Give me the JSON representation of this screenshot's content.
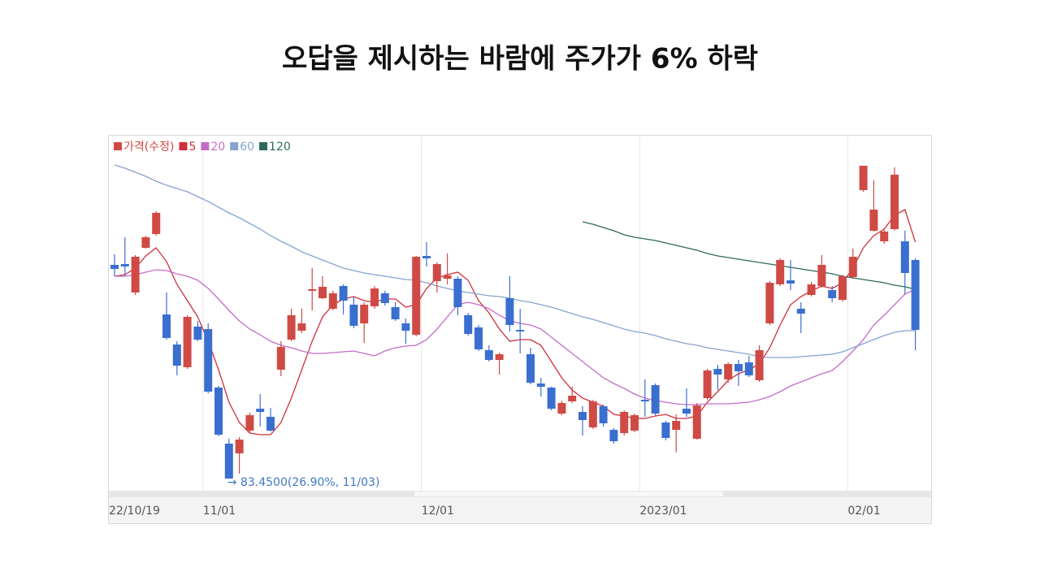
{
  "chart_data": {
    "type": "candlestick",
    "title": "오답을 제시하는 바람에 주가가 6% 하락",
    "price_name": "가격(수정)",
    "up_color": "#d04a45",
    "down_color": "#3a6fd0",
    "legend": "top-left",
    "annotation": "→ 83.4500(26.90%, 11/03)",
    "categories": [
      "22/10/19",
      null,
      null,
      null,
      null,
      null,
      null,
      null,
      null,
      "11/01",
      null,
      null,
      null,
      null,
      null,
      null,
      null,
      null,
      null,
      null,
      null,
      null,
      null,
      null,
      null,
      null,
      null,
      null,
      null,
      null,
      "12/01",
      null,
      null,
      null,
      null,
      null,
      null,
      null,
      null,
      null,
      null,
      null,
      null,
      null,
      null,
      null,
      null,
      null,
      null,
      null,
      null,
      "2023/01",
      null,
      null,
      null,
      null,
      null,
      null,
      null,
      null,
      null,
      null,
      null,
      null,
      null,
      null,
      null,
      null,
      null,
      null,
      null,
      "02/01",
      null,
      null,
      null,
      null,
      null,
      null
    ],
    "open": [
      109.75,
      109.85,
      106.35,
      111.85,
      113.55,
      103.65,
      99.95,
      97.15,
      102.15,
      101.85,
      94.65,
      87.75,
      86.55,
      89.35,
      92.05,
      91.05,
      96.85,
      100.55,
      101.65,
      106.55,
      105.65,
      104.35,
      107.15,
      104.85,
      102.55,
      104.65,
      106.25,
      104.55,
      102.55,
      101.15,
      110.85,
      107.75,
      108.05,
      108.05,
      103.55,
      102.05,
      99.25,
      98.05,
      105.65,
      101.75,
      98.75,
      95.15,
      94.65,
      91.45,
      92.95,
      91.65,
      89.75,
      92.35,
      89.45,
      89.05,
      89.35,
      93.15,
      94.95,
      90.35,
      89.45,
      92.05,
      88.35,
      93.35,
      96.95,
      95.65,
      97.55,
      97.75,
      95.55,
      102.55,
      107.35,
      107.85,
      104.35,
      106.05,
      107.15,
      106.65,
      105.45,
      108.25,
      118.95,
      113.95,
      112.65,
      114.15,
      112.65,
      110.35
    ],
    "high": [
      111.05,
      113.15,
      110.95,
      113.35,
      116.35,
      106.35,
      100.35,
      103.55,
      102.85,
      102.55,
      94.85,
      88.35,
      88.55,
      91.55,
      93.85,
      92.15,
      100.35,
      104.35,
      104.35,
      109.35,
      108.35,
      106.55,
      107.35,
      105.85,
      105.15,
      107.15,
      106.55,
      105.15,
      103.15,
      110.85,
      112.55,
      110.05,
      111.15,
      108.35,
      103.85,
      102.35,
      99.85,
      98.95,
      108.35,
      104.35,
      99.55,
      95.85,
      94.75,
      93.05,
      94.75,
      92.35,
      93.15,
      92.55,
      89.65,
      91.85,
      91.45,
      95.65,
      95.15,
      90.55,
      91.35,
      94.55,
      92.75,
      96.95,
      97.45,
      97.75,
      98.05,
      98.55,
      99.85,
      107.75,
      110.55,
      110.35,
      105.15,
      107.65,
      110.95,
      107.15,
      108.55,
      111.75,
      121.95,
      120.15,
      114.15,
      121.75,
      113.95,
      110.55
    ],
    "low": [
      108.35,
      108.35,
      106.05,
      111.75,
      113.35,
      100.55,
      96.15,
      96.95,
      100.35,
      93.95,
      88.65,
      83.45,
      84.05,
      89.05,
      89.85,
      89.25,
      96.05,
      100.35,
      101.35,
      104.15,
      105.55,
      104.15,
      103.65,
      101.95,
      100.15,
      104.35,
      104.75,
      102.85,
      100.05,
      100.95,
      109.55,
      106.35,
      107.35,
      103.55,
      101.05,
      99.15,
      97.85,
      96.25,
      101.55,
      98.85,
      95.05,
      93.55,
      91.85,
      91.25,
      92.75,
      88.75,
      89.55,
      89.85,
      87.75,
      88.75,
      89.15,
      91.05,
      91.25,
      88.15,
      86.65,
      91.05,
      88.25,
      93.15,
      94.35,
      95.25,
      94.85,
      95.95,
      95.35,
      102.35,
      107.15,
      106.65,
      101.35,
      105.85,
      106.95,
      105.15,
      105.25,
      108.05,
      118.75,
      113.85,
      112.35,
      113.95,
      106.15,
      99.25
    ],
    "close": [
      109.25,
      109.55,
      110.75,
      113.15,
      116.15,
      100.75,
      97.35,
      103.35,
      100.55,
      94.15,
      88.85,
      83.45,
      88.25,
      91.25,
      91.65,
      89.35,
      99.65,
      103.55,
      102.55,
      106.75,
      107.05,
      106.25,
      105.35,
      102.25,
      104.85,
      106.85,
      105.05,
      103.05,
      101.65,
      110.75,
      110.55,
      109.85,
      108.45,
      104.55,
      101.25,
      99.35,
      98.05,
      98.75,
      102.35,
      101.55,
      95.25,
      94.75,
      92.05,
      92.75,
      93.65,
      90.65,
      92.95,
      90.25,
      88.05,
      91.65,
      91.25,
      92.95,
      91.45,
      88.45,
      90.55,
      91.45,
      92.45,
      96.75,
      96.25,
      97.55,
      96.65,
      96.15,
      99.25,
      107.55,
      110.35,
      107.45,
      103.75,
      107.35,
      109.75,
      105.65,
      108.35,
      110.75,
      121.95,
      116.55,
      113.85,
      120.85,
      108.75,
      101.75
    ],
    "series": [
      {
        "name": "5",
        "color": "#cf2f3c",
        "values": [
          108.35,
          108.55,
          109.35,
          110.85,
          111.85,
          110.15,
          107.35,
          105.35,
          103.35,
          100.35,
          96.85,
          92.85,
          90.35,
          89.05,
          88.85,
          88.85,
          90.35,
          93.35,
          96.85,
          100.35,
          103.35,
          104.85,
          105.55,
          105.85,
          105.35,
          105.15,
          105.55,
          105.55,
          104.55,
          104.85,
          106.85,
          108.15,
          108.55,
          108.85,
          107.85,
          105.35,
          103.85,
          101.85,
          100.35,
          100.55,
          100.55,
          99.85,
          97.85,
          95.85,
          94.35,
          93.35,
          92.85,
          92.35,
          91.35,
          91.15,
          90.85,
          90.85,
          91.15,
          91.35,
          90.85,
          90.85,
          91.15,
          92.85,
          94.15,
          95.55,
          96.35,
          96.85,
          97.55,
          99.55,
          102.35,
          104.85,
          105.85,
          106.55,
          107.15,
          106.85,
          107.55,
          109.35,
          111.85,
          113.35,
          114.15,
          115.85,
          116.55,
          112.55
        ]
      },
      {
        "name": "20",
        "color": "#c46cc9",
        "values": [
          108.35,
          108.35,
          108.55,
          108.85,
          109.15,
          109.05,
          108.65,
          108.35,
          107.85,
          106.85,
          105.55,
          104.15,
          102.85,
          101.85,
          101.15,
          100.35,
          99.85,
          99.55,
          99.15,
          98.85,
          98.85,
          98.95,
          99.05,
          99.15,
          98.85,
          98.55,
          99.15,
          99.55,
          99.75,
          99.85,
          100.55,
          101.85,
          103.35,
          104.85,
          105.15,
          104.85,
          104.35,
          103.55,
          102.85,
          102.55,
          102.35,
          101.85,
          100.85,
          99.85,
          98.85,
          97.85,
          96.85,
          95.85,
          95.15,
          94.55,
          93.85,
          93.35,
          93.05,
          92.85,
          92.65,
          92.55,
          92.55,
          92.65,
          92.65,
          92.65,
          92.75,
          92.85,
          93.15,
          93.55,
          94.15,
          94.85,
          95.35,
          95.85,
          96.35,
          96.75,
          97.85,
          99.15,
          100.55,
          102.35,
          103.55,
          104.85,
          106.15,
          106.75
        ]
      },
      {
        "name": "60",
        "color": "#86a3cf",
        "values": [
          122.05,
          121.65,
          121.15,
          120.65,
          120.05,
          119.55,
          119.15,
          118.75,
          118.15,
          117.55,
          116.85,
          116.15,
          115.55,
          114.85,
          114.15,
          113.35,
          112.65,
          112.05,
          111.35,
          110.85,
          110.35,
          109.85,
          109.35,
          109.05,
          108.75,
          108.55,
          108.35,
          108.15,
          107.95,
          107.85,
          107.55,
          107.15,
          106.85,
          106.55,
          106.35,
          106.15,
          105.95,
          105.85,
          105.65,
          105.35,
          105.15,
          104.85,
          104.55,
          104.15,
          103.75,
          103.35,
          103.05,
          102.65,
          102.25,
          101.85,
          101.55,
          101.35,
          101.05,
          100.65,
          100.35,
          100.05,
          99.85,
          99.55,
          99.35,
          99.15,
          98.95,
          98.75,
          98.45,
          98.35,
          98.35,
          98.35,
          98.45,
          98.55,
          98.65,
          98.75,
          99.05,
          99.55,
          100.05,
          100.55,
          101.05,
          101.45,
          101.65,
          101.65
        ]
      },
      {
        "name": "120",
        "color": "#2d6a5b",
        "values": [
          null,
          null,
          null,
          null,
          null,
          null,
          null,
          null,
          null,
          null,
          null,
          null,
          null,
          null,
          null,
          null,
          null,
          null,
          null,
          null,
          null,
          null,
          null,
          null,
          null,
          null,
          null,
          null,
          null,
          null,
          null,
          null,
          null,
          null,
          null,
          null,
          null,
          null,
          null,
          null,
          null,
          null,
          null,
          null,
          null,
          115.05,
          114.75,
          114.35,
          113.95,
          113.45,
          113.15,
          112.95,
          112.75,
          112.45,
          112.15,
          111.85,
          111.55,
          111.15,
          110.85,
          110.65,
          110.45,
          110.25,
          110.05,
          109.85,
          109.65,
          109.45,
          109.25,
          109.05,
          108.85,
          108.65,
          108.35,
          108.15,
          107.95,
          107.75,
          107.55,
          107.25,
          107.05,
          106.75
        ]
      }
    ],
    "ylim": [
      81.85,
      125.55
    ]
  }
}
